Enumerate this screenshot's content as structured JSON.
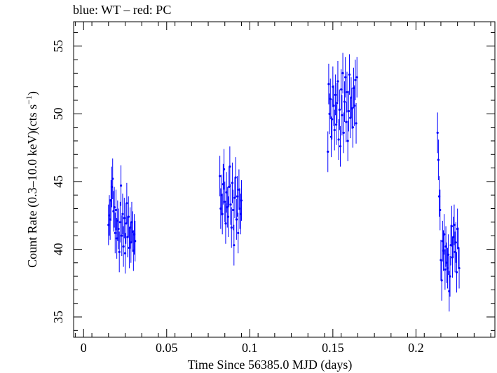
{
  "chart_data": {
    "type": "scatter",
    "title": "blue: WT – red: PC",
    "xlabel": "Time Since 56385.0 MJD (days)",
    "ylabel_main": "Count Rate (0.3–10.0 keV)(cts s",
    "ylabel_sup": "−1",
    "ylabel_end": ")",
    "xlim": [
      -0.006,
      0.2475
    ],
    "ylim": [
      33.5,
      56.8
    ],
    "xticks": [
      0,
      0.05,
      0.1,
      0.15,
      0.2
    ],
    "xtick_labels": [
      "0",
      "0.05",
      "0.1",
      "0.15",
      "0.2"
    ],
    "yticks": [
      35,
      40,
      45,
      50,
      55
    ],
    "ytick_labels": [
      "35",
      "40",
      "45",
      "50",
      "55"
    ],
    "grid": false,
    "series": [
      {
        "color": "#0000ff",
        "error": 1.5,
        "points": [
          [
            0.015,
            41.8
          ],
          [
            0.0155,
            42.5
          ],
          [
            0.016,
            42.2
          ],
          [
            0.0165,
            43.6
          ],
          [
            0.017,
            44.6
          ],
          [
            0.0175,
            45.2
          ],
          [
            0.018,
            42.8
          ],
          [
            0.0185,
            43.1
          ],
          [
            0.019,
            41.2
          ],
          [
            0.0195,
            42.9
          ],
          [
            0.02,
            40.8
          ],
          [
            0.0205,
            42.1
          ],
          [
            0.021,
            41.5
          ],
          [
            0.0215,
            39.8
          ],
          [
            0.022,
            42.0
          ],
          [
            0.0225,
            44.7
          ],
          [
            0.023,
            41.0
          ],
          [
            0.0235,
            42.6
          ],
          [
            0.024,
            40.2
          ],
          [
            0.0245,
            42.3
          ],
          [
            0.025,
            39.7
          ],
          [
            0.0255,
            41.9
          ],
          [
            0.026,
            43.4
          ],
          [
            0.0265,
            40.9
          ],
          [
            0.027,
            42.4
          ],
          [
            0.0275,
            40.1
          ],
          [
            0.028,
            41.6
          ],
          [
            0.0285,
            40.5
          ],
          [
            0.029,
            42.0
          ],
          [
            0.0295,
            41.3
          ],
          [
            0.03,
            39.9
          ],
          [
            0.0305,
            41.1
          ],
          [
            0.031,
            40.6
          ],
          [
            0.082,
            45.4
          ],
          [
            0.0825,
            43.0
          ],
          [
            0.083,
            44.0
          ],
          [
            0.0835,
            42.6
          ],
          [
            0.084,
            44.8
          ],
          [
            0.0845,
            45.9
          ],
          [
            0.085,
            43.5
          ],
          [
            0.0855,
            41.9
          ],
          [
            0.086,
            44.2
          ],
          [
            0.0865,
            43.1
          ],
          [
            0.087,
            42.4
          ],
          [
            0.0875,
            44.6
          ],
          [
            0.088,
            46.1
          ],
          [
            0.0885,
            43.3
          ],
          [
            0.089,
            41.6
          ],
          [
            0.0895,
            44.9
          ],
          [
            0.09,
            42.9
          ],
          [
            0.0905,
            40.3
          ],
          [
            0.091,
            43.8
          ],
          [
            0.0915,
            45.3
          ],
          [
            0.092,
            42.2
          ],
          [
            0.0925,
            43.9
          ],
          [
            0.093,
            41.2
          ],
          [
            0.0935,
            44.4
          ],
          [
            0.094,
            43.0
          ],
          [
            0.0945,
            42.6
          ],
          [
            0.095,
            43.6
          ],
          [
            0.147,
            47.2
          ],
          [
            0.1475,
            52.2
          ],
          [
            0.148,
            50.0
          ],
          [
            0.1485,
            51.1
          ],
          [
            0.149,
            48.3
          ],
          [
            0.1495,
            49.6
          ],
          [
            0.15,
            52.0
          ],
          [
            0.1505,
            50.6
          ],
          [
            0.151,
            48.8
          ],
          [
            0.1515,
            51.4
          ],
          [
            0.152,
            49.2
          ],
          [
            0.1525,
            50.8
          ],
          [
            0.153,
            52.4
          ],
          [
            0.1535,
            48.1
          ],
          [
            0.154,
            50.3
          ],
          [
            0.1545,
            47.6
          ],
          [
            0.155,
            51.8
          ],
          [
            0.1555,
            49.9
          ],
          [
            0.156,
            53.0
          ],
          [
            0.1565,
            48.6
          ],
          [
            0.157,
            50.9
          ],
          [
            0.1575,
            52.7
          ],
          [
            0.158,
            49.4
          ],
          [
            0.1585,
            51.6
          ],
          [
            0.159,
            48.0
          ],
          [
            0.1595,
            50.2
          ],
          [
            0.16,
            52.9
          ],
          [
            0.1605,
            49.7
          ],
          [
            0.161,
            51.2
          ],
          [
            0.1615,
            50.4
          ],
          [
            0.162,
            49.0
          ],
          [
            0.1625,
            51.9
          ],
          [
            0.163,
            50.6
          ],
          [
            0.1635,
            52.5
          ],
          [
            0.164,
            49.3
          ],
          [
            0.1645,
            52.7
          ],
          [
            0.213,
            48.6
          ],
          [
            0.2135,
            46.6
          ],
          [
            0.214,
            43.9
          ],
          [
            0.2145,
            42.9
          ],
          [
            0.215,
            39.2
          ],
          [
            0.2155,
            37.7
          ],
          [
            0.216,
            40.6
          ],
          [
            0.2165,
            39.9
          ],
          [
            0.217,
            41.1
          ],
          [
            0.2175,
            38.5
          ],
          [
            0.218,
            40.2
          ],
          [
            0.2185,
            39.0
          ],
          [
            0.219,
            38.6
          ],
          [
            0.2195,
            39.6
          ],
          [
            0.22,
            36.9
          ],
          [
            0.2205,
            38.0
          ],
          [
            0.221,
            40.3
          ],
          [
            0.2215,
            41.7
          ],
          [
            0.222,
            39.4
          ],
          [
            0.2225,
            40.9
          ],
          [
            0.223,
            41.8
          ],
          [
            0.2235,
            39.8
          ],
          [
            0.224,
            40.5
          ],
          [
            0.2245,
            38.3
          ],
          [
            0.225,
            41.5
          ],
          [
            0.2255,
            40.1
          ],
          [
            0.226,
            38.6
          ]
        ]
      }
    ]
  }
}
